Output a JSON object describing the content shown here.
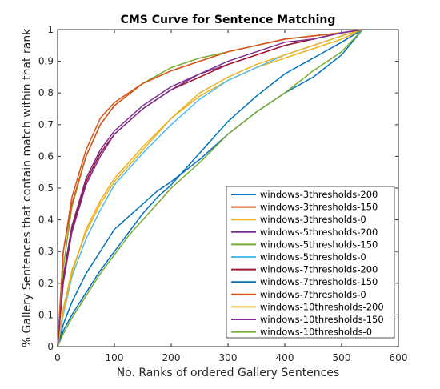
{
  "chart_data": {
    "type": "line",
    "title": "CMS Curve for Sentence Matching",
    "xlabel": "No. Ranks of ordered Gallery Sentences",
    "ylabel": "% Gallery Sentences that contain match within that rank",
    "xlim": [
      0,
      600
    ],
    "ylim": [
      0,
      1
    ],
    "xticks": [
      0,
      100,
      200,
      300,
      400,
      500,
      600
    ],
    "xtick_labels": [
      "0",
      "100",
      "200",
      "300",
      "400",
      "500",
      "600"
    ],
    "yticks": [
      0,
      0.1,
      0.2,
      0.3,
      0.4,
      0.5,
      0.6,
      0.7,
      0.8,
      0.9,
      1
    ],
    "ytick_labels": [
      "0",
      "0.1",
      "0.2",
      "0.3",
      "0.4",
      "0.5",
      "0.6",
      "0.7",
      "0.8",
      "0.9",
      "1"
    ],
    "grid": false,
    "legend_position": "bottom-right",
    "series": [
      {
        "name": "windows-3thresholds-200",
        "color": "#0072BD",
        "x": [
          0,
          10,
          25,
          50,
          75,
          100,
          125,
          150,
          175,
          200,
          250,
          300,
          350,
          400,
          450,
          500,
          537
        ],
        "y": [
          0,
          0.07,
          0.14,
          0.23,
          0.3,
          0.37,
          0.41,
          0.45,
          0.49,
          0.52,
          0.59,
          0.67,
          0.74,
          0.8,
          0.85,
          0.92,
          1.0
        ]
      },
      {
        "name": "windows-3thresholds-150",
        "color": "#D95319",
        "x": [
          0,
          10,
          25,
          50,
          75,
          100,
          150,
          200,
          250,
          300,
          350,
          400,
          450,
          500,
          537
        ],
        "y": [
          0,
          0.3,
          0.47,
          0.62,
          0.72,
          0.77,
          0.83,
          0.87,
          0.9,
          0.93,
          0.95,
          0.97,
          0.98,
          0.99,
          1.0
        ]
      },
      {
        "name": "windows-3thresholds-0",
        "color": "#EDB120",
        "x": [
          0,
          10,
          25,
          50,
          75,
          100,
          150,
          200,
          250,
          300,
          350,
          400,
          450,
          500,
          537
        ],
        "y": [
          0,
          0.12,
          0.24,
          0.36,
          0.45,
          0.52,
          0.62,
          0.72,
          0.79,
          0.84,
          0.88,
          0.91,
          0.94,
          0.97,
          1.0
        ]
      },
      {
        "name": "windows-5thresholds-200",
        "color": "#7E2F8E",
        "x": [
          0,
          10,
          25,
          50,
          75,
          100,
          150,
          200,
          250,
          300,
          350,
          400,
          450,
          500,
          537
        ],
        "y": [
          0,
          0.22,
          0.38,
          0.53,
          0.62,
          0.68,
          0.76,
          0.82,
          0.86,
          0.89,
          0.92,
          0.95,
          0.97,
          0.99,
          1.0
        ]
      },
      {
        "name": "windows-5thresholds-150",
        "color": "#77AC30",
        "x": [
          0,
          10,
          25,
          50,
          75,
          100,
          150,
          200,
          250,
          300,
          350,
          400,
          450,
          500,
          537
        ],
        "y": [
          0,
          0.25,
          0.44,
          0.6,
          0.7,
          0.76,
          0.83,
          0.88,
          0.91,
          0.93,
          0.95,
          0.97,
          0.98,
          0.99,
          1.0
        ]
      },
      {
        "name": "windows-5thresholds-0",
        "color": "#4DBEEE",
        "x": [
          0,
          10,
          25,
          50,
          75,
          100,
          150,
          200,
          250,
          300,
          350,
          400,
          450,
          500,
          537
        ],
        "y": [
          0,
          0.1,
          0.22,
          0.34,
          0.43,
          0.51,
          0.61,
          0.7,
          0.78,
          0.84,
          0.88,
          0.92,
          0.95,
          0.98,
          1.0
        ]
      },
      {
        "name": "windows-7thresholds-200",
        "color": "#A2142F",
        "x": [
          0,
          10,
          25,
          50,
          75,
          100,
          150,
          200,
          250,
          300,
          350,
          400,
          450,
          500,
          537
        ],
        "y": [
          0,
          0.21,
          0.37,
          0.52,
          0.61,
          0.67,
          0.75,
          0.81,
          0.85,
          0.89,
          0.92,
          0.95,
          0.97,
          0.99,
          1.0
        ]
      },
      {
        "name": "windows-7thresholds-150",
        "color": "#0072BD",
        "x": [
          0,
          10,
          25,
          50,
          75,
          100,
          125,
          150,
          175,
          200,
          250,
          300,
          350,
          400,
          450,
          500,
          537
        ],
        "y": [
          0,
          0.05,
          0.1,
          0.17,
          0.24,
          0.3,
          0.36,
          0.42,
          0.47,
          0.51,
          0.61,
          0.71,
          0.79,
          0.86,
          0.91,
          0.96,
          1.0
        ]
      },
      {
        "name": "windows-7thresholds-0",
        "color": "#D95319",
        "x": [
          0,
          10,
          25,
          50,
          75,
          100,
          150,
          200,
          250,
          300,
          350,
          400,
          450,
          500,
          537
        ],
        "y": [
          0,
          0.3,
          0.45,
          0.6,
          0.7,
          0.76,
          0.83,
          0.87,
          0.9,
          0.93,
          0.95,
          0.97,
          0.98,
          0.99,
          1.0
        ]
      },
      {
        "name": "windows-10thresholds-200",
        "color": "#EDB120",
        "x": [
          0,
          10,
          25,
          50,
          75,
          100,
          150,
          200,
          250,
          300,
          350,
          400,
          450,
          500,
          537
        ],
        "y": [
          0,
          0.11,
          0.23,
          0.37,
          0.46,
          0.53,
          0.63,
          0.72,
          0.8,
          0.85,
          0.89,
          0.92,
          0.95,
          0.98,
          1.0
        ]
      },
      {
        "name": "windows-10thresholds-150",
        "color": "#7E2F8E",
        "x": [
          0,
          10,
          25,
          50,
          75,
          100,
          150,
          200,
          250,
          300,
          350,
          400,
          450,
          500,
          537
        ],
        "y": [
          0,
          0.2,
          0.36,
          0.51,
          0.6,
          0.67,
          0.75,
          0.81,
          0.86,
          0.9,
          0.93,
          0.96,
          0.97,
          0.99,
          1.0
        ]
      },
      {
        "name": "windows-10thresholds-0",
        "color": "#77AC30",
        "x": [
          0,
          10,
          25,
          50,
          75,
          100,
          125,
          150,
          175,
          200,
          250,
          300,
          350,
          400,
          450,
          500,
          537
        ],
        "y": [
          0,
          0.04,
          0.09,
          0.16,
          0.23,
          0.29,
          0.35,
          0.4,
          0.45,
          0.5,
          0.58,
          0.67,
          0.74,
          0.8,
          0.87,
          0.93,
          1.0
        ]
      }
    ]
  }
}
